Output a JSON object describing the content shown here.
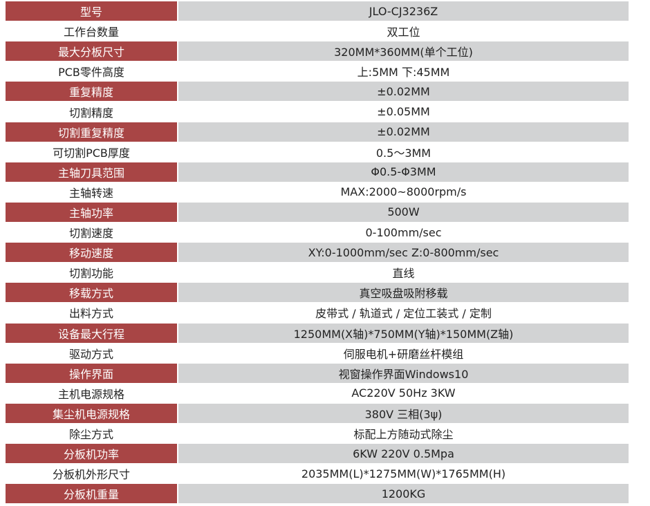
{
  "colors": {
    "header_red": "#a84545",
    "row_gray": "#d2d3d4"
  },
  "rows": [
    {
      "label": "型号",
      "value": "JLO-CJ3236Z"
    },
    {
      "label": "工作台数量",
      "value": "双工位"
    },
    {
      "label": "最大分板尺寸",
      "value": "320MM*360MM(单个工位)"
    },
    {
      "label": "PCB零件高度",
      "value": "上:5MM 下:45MM"
    },
    {
      "label": "重复精度",
      "value": "±0.02MM"
    },
    {
      "label": "切割精度",
      "value": "±0.05MM"
    },
    {
      "label": "切割重复精度",
      "value": "±0.02MM"
    },
    {
      "label": "可切割PCB厚度",
      "value": "0.5～3MM"
    },
    {
      "label": "主轴刀具范围",
      "value": "Φ0.5-Φ3MM"
    },
    {
      "label": "主轴转速",
      "value": "MAX:2000~8000rpm/s"
    },
    {
      "label": "主轴功率",
      "value": "500W"
    },
    {
      "label": "切割速度",
      "value": "0-100mm/sec"
    },
    {
      "label": "移动速度",
      "value": "XY:0-1000mm/sec Z:0-800mm/sec"
    },
    {
      "label": "切割功能",
      "value": "直线"
    },
    {
      "label": "移载方式",
      "value": "真空吸盘吸附移载"
    },
    {
      "label": "出料方式",
      "value": "皮带式 / 轨道式 / 定位工装式 / 定制"
    },
    {
      "label": "设备最大行程",
      "value": "1250MM(X轴)*750MM(Y轴)*150MM(Z轴)"
    },
    {
      "label": "驱动方式",
      "value": "伺服电机+研磨丝杆模组"
    },
    {
      "label": "操作界面",
      "value": "视窗操作界面Windows10"
    },
    {
      "label": "主机电源规格",
      "value": "AC220V 50Hz 3KW"
    },
    {
      "label": "集尘机电源规格",
      "value": "380V 三相(3ψ)"
    },
    {
      "label": "除尘方式",
      "value": "标配上方随动式除尘"
    },
    {
      "label": "分板机功率",
      "value": "6KW 220V 0.5Mpa"
    },
    {
      "label": "分板机外形尺寸",
      "value": "2035MM(L)*1275MM(W)*1765MM(H)"
    },
    {
      "label": "分板机重量",
      "value": "1200KG"
    }
  ]
}
